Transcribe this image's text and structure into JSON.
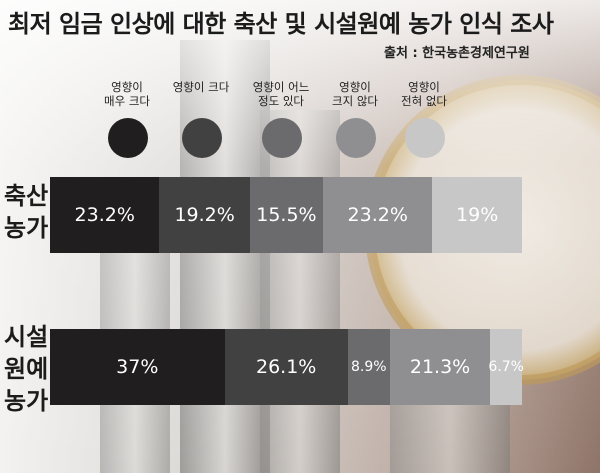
{
  "chart_data": {
    "type": "bar",
    "orientation": "horizontal",
    "stacked": true,
    "title": "최저 임금 인상에 대한 축산 및 시설원예 농가 인식 조사",
    "source": "출처 : 한국농촌경제연구원",
    "unit": "%",
    "legend_position": "top",
    "legend": [
      {
        "label": "영향이\n매우 크다",
        "color": "#201e1f"
      },
      {
        "label": "영향이 크다",
        "color": "#424142"
      },
      {
        "label": "영향이 어느\n정도 있다",
        "color": "#6b6a6c"
      },
      {
        "label": "영향이\n크지 않다",
        "color": "#8f8e90"
      },
      {
        "label": "영향이\n전혀 없다",
        "color": "#c8c7c8"
      }
    ],
    "categories": [
      "축산\n농가",
      "시설\n원예\n농가"
    ],
    "series": [
      {
        "name": "영향이 매우 크다",
        "values": [
          23.2,
          37
        ],
        "labels": [
          "23.2%",
          "37%"
        ]
      },
      {
        "name": "영향이 크다",
        "values": [
          19.2,
          26.1
        ],
        "labels": [
          "19.2%",
          "26.1%"
        ]
      },
      {
        "name": "영향이 어느 정도 있다",
        "values": [
          15.5,
          8.9
        ],
        "labels": [
          "15.5%",
          "8.9%"
        ]
      },
      {
        "name": "영향이 크지 않다",
        "values": [
          23.2,
          21.3
        ],
        "labels": [
          "23.2%",
          "21.3%"
        ]
      },
      {
        "name": "영향이 전혀 없다",
        "values": [
          19,
          6.7
        ],
        "labels": [
          "19%",
          "6.7%"
        ]
      }
    ],
    "grid": false
  }
}
